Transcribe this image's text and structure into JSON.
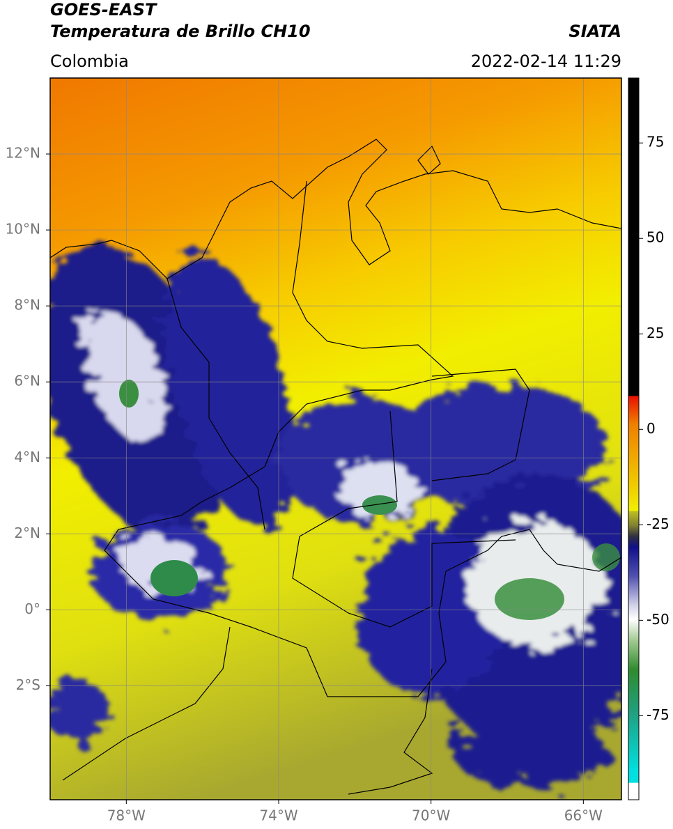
{
  "header": {
    "title": "GOES-EAST",
    "subtitle": "Temperatura de Brillo CH10",
    "source": "SIATA",
    "region": "Colombia",
    "datetime": "2022-02-14 11:29"
  },
  "map": {
    "xlim": [
      -80,
      -65
    ],
    "ylim": [
      -5,
      14
    ],
    "xticks": [
      {
        "value": -78,
        "label": "78°W"
      },
      {
        "value": -74,
        "label": "74°W"
      },
      {
        "value": -70,
        "label": "70°W"
      },
      {
        "value": -66,
        "label": "66°W"
      }
    ],
    "yticks": [
      {
        "value": 12,
        "label": "12°N"
      },
      {
        "value": 10,
        "label": "10°N"
      },
      {
        "value": 8,
        "label": "8°N"
      },
      {
        "value": 6,
        "label": "6°N"
      },
      {
        "value": 4,
        "label": "4°N"
      },
      {
        "value": 2,
        "label": "2°N"
      },
      {
        "value": 0,
        "label": "0°"
      },
      {
        "value": -2,
        "label": "2°S"
      }
    ],
    "grid": true
  },
  "colorbar": {
    "lim": [
      -97,
      92
    ],
    "ticks": [
      75,
      50,
      25,
      0,
      -25,
      -50,
      -75
    ]
  }
}
